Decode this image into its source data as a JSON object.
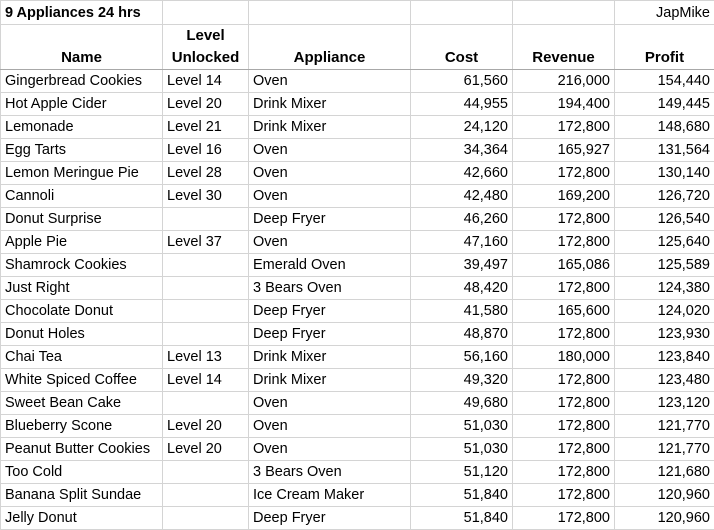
{
  "sheet": {
    "title": "9 Appliances 24 hrs",
    "author": "JapMike",
    "headers": {
      "level_top": "Level",
      "level_bottom": "Unlocked",
      "name": "Name",
      "appliance": "Appliance",
      "cost": "Cost",
      "revenue": "Revenue",
      "profit": "Profit"
    },
    "rows": [
      {
        "name": "Gingerbread Cookies",
        "level": "Level 14",
        "appliance": "Oven",
        "cost": "61,560",
        "revenue": "216,000",
        "profit": "154,440"
      },
      {
        "name": "Hot Apple Cider",
        "level": "Level 20",
        "appliance": "Drink Mixer",
        "cost": "44,955",
        "revenue": "194,400",
        "profit": "149,445"
      },
      {
        "name": "Lemonade",
        "level": "Level 21",
        "appliance": "Drink Mixer",
        "cost": "24,120",
        "revenue": "172,800",
        "profit": "148,680"
      },
      {
        "name": "Egg Tarts",
        "level": "Level 16",
        "appliance": "Oven",
        "cost": "34,364",
        "revenue": "165,927",
        "profit": "131,564"
      },
      {
        "name": "Lemon Meringue Pie",
        "level": "Level 28",
        "appliance": "Oven",
        "cost": "42,660",
        "revenue": "172,800",
        "profit": "130,140"
      },
      {
        "name": "Cannoli",
        "level": "Level 30",
        "appliance": "Oven",
        "cost": "42,480",
        "revenue": "169,200",
        "profit": "126,720"
      },
      {
        "name": "Donut Surprise",
        "level": "",
        "appliance": "Deep Fryer",
        "cost": "46,260",
        "revenue": "172,800",
        "profit": "126,540"
      },
      {
        "name": "Apple Pie",
        "level": "Level 37",
        "appliance": "Oven",
        "cost": "47,160",
        "revenue": "172,800",
        "profit": "125,640"
      },
      {
        "name": "Shamrock Cookies",
        "level": "",
        "appliance": "Emerald Oven",
        "cost": "39,497",
        "revenue": "165,086",
        "profit": "125,589"
      },
      {
        "name": "Just Right",
        "level": "",
        "appliance": "3 Bears Oven",
        "cost": "48,420",
        "revenue": "172,800",
        "profit": "124,380"
      },
      {
        "name": "Chocolate Donut",
        "level": "",
        "appliance": "Deep Fryer",
        "cost": "41,580",
        "revenue": "165,600",
        "profit": "124,020"
      },
      {
        "name": "Donut Holes",
        "level": "",
        "appliance": "Deep Fryer",
        "cost": "48,870",
        "revenue": "172,800",
        "profit": "123,930"
      },
      {
        "name": "Chai Tea",
        "level": "Level 13",
        "appliance": "Drink Mixer",
        "cost": "56,160",
        "revenue": "180,000",
        "profit": "123,840"
      },
      {
        "name": "White Spiced Coffee",
        "level": "Level 14",
        "appliance": "Drink Mixer",
        "cost": "49,320",
        "revenue": "172,800",
        "profit": "123,480"
      },
      {
        "name": "Sweet Bean Cake",
        "level": "",
        "appliance": "Oven",
        "cost": "49,680",
        "revenue": "172,800",
        "profit": "123,120"
      },
      {
        "name": "Blueberry Scone",
        "level": "Level 20",
        "appliance": "Oven",
        "cost": "51,030",
        "revenue": "172,800",
        "profit": "121,770"
      },
      {
        "name": "Peanut Butter Cookies",
        "level": "Level 20",
        "appliance": "Oven",
        "cost": "51,030",
        "revenue": "172,800",
        "profit": "121,770"
      },
      {
        "name": "Too Cold",
        "level": "",
        "appliance": "3 Bears Oven",
        "cost": "51,120",
        "revenue": "172,800",
        "profit": "121,680"
      },
      {
        "name": "Banana Split Sundae",
        "level": "",
        "appliance": "Ice Cream Maker",
        "cost": "51,840",
        "revenue": "172,800",
        "profit": "120,960"
      },
      {
        "name": "Jelly Donut",
        "level": "",
        "appliance": "Deep Fryer",
        "cost": "51,840",
        "revenue": "172,800",
        "profit": "120,960"
      }
    ]
  }
}
